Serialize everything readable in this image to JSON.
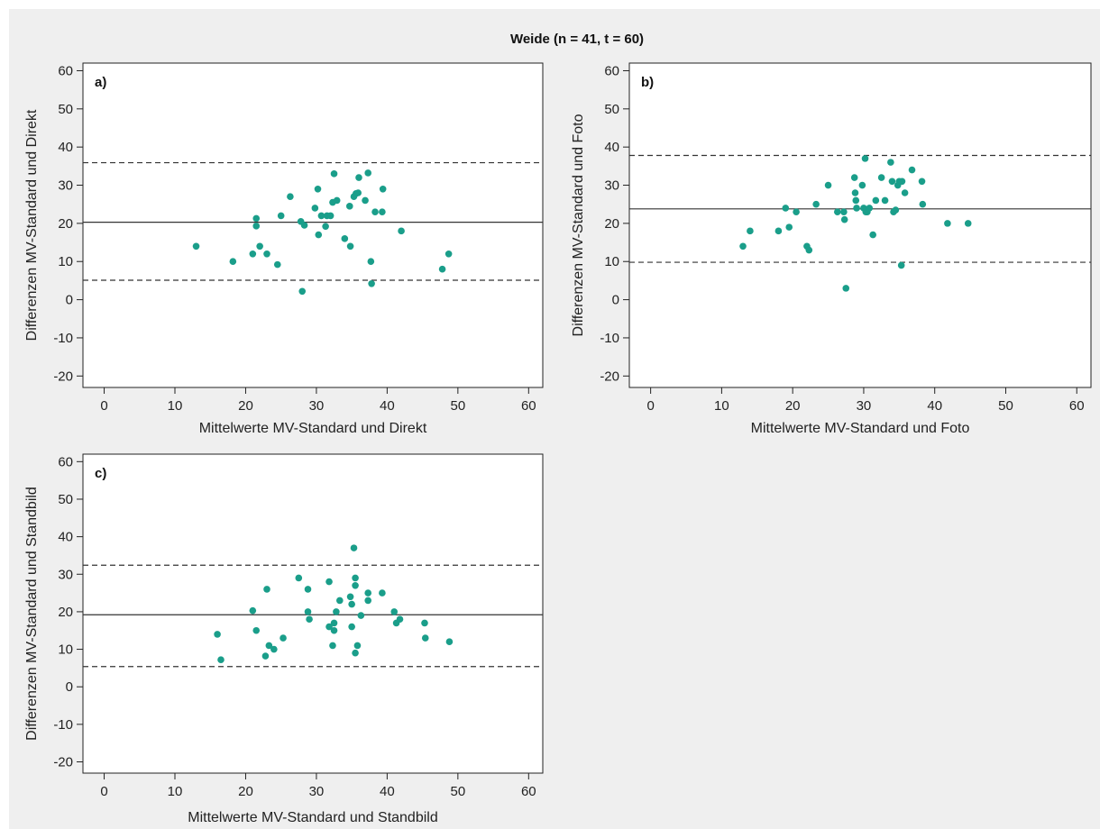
{
  "page": {
    "background": "#ffffff",
    "panel_background": "#efefef",
    "title": "Weide (n = 41, t = 60)"
  },
  "style": {
    "point_color": "#1a9e8a",
    "line_color": "#333333",
    "axis_color": "#222222"
  },
  "chart_data": [
    {
      "type": "scatter",
      "panel_label": "a)",
      "xlabel": "Mittelwerte MV-Standard und Direkt",
      "ylabel": "Differenzen MV-Standard und Direkt",
      "xlim": [
        -3,
        62
      ],
      "ylim": [
        -23,
        62
      ],
      "xticks": [
        0,
        10,
        20,
        30,
        40,
        50,
        60
      ],
      "yticks": [
        -20,
        -10,
        0,
        10,
        20,
        30,
        40,
        50,
        60
      ],
      "grid": false,
      "mean_line": 20.3,
      "limits_of_agreement": [
        5.1,
        35.9
      ],
      "x": [
        13.0,
        18.2,
        21.0,
        21.5,
        21.5,
        22.0,
        23.0,
        24.5,
        25.0,
        26.3,
        27.8,
        28.0,
        28.3,
        29.8,
        30.2,
        30.3,
        30.7,
        31.3,
        31.5,
        32.0,
        32.3,
        32.5,
        32.9,
        34.0,
        34.7,
        34.8,
        35.3,
        35.6,
        35.9,
        36.0,
        36.9,
        37.3,
        37.7,
        37.8,
        38.3,
        39.3,
        39.4,
        42.0,
        47.8,
        48.7
      ],
      "y": [
        14.0,
        10.0,
        12.0,
        21.3,
        19.3,
        14.0,
        12.0,
        9.2,
        22.0,
        27.0,
        20.5,
        2.2,
        19.5,
        24.0,
        29.0,
        17.0,
        22.0,
        19.2,
        22.0,
        22.0,
        25.5,
        33.0,
        26.0,
        16.0,
        24.5,
        14.0,
        27.0,
        27.8,
        28.0,
        32.0,
        26.0,
        33.2,
        10.0,
        4.2,
        23.0,
        23.0,
        29.0,
        18.0,
        8.0,
        12.0
      ]
    },
    {
      "type": "scatter",
      "panel_label": "b)",
      "xlabel": "Mittelwerte MV-Standard und Foto",
      "ylabel": "Differenzen MV-Standard und Foto",
      "xlim": [
        -3,
        62
      ],
      "ylim": [
        -23,
        62
      ],
      "xticks": [
        0,
        10,
        20,
        30,
        40,
        50,
        60
      ],
      "yticks": [
        -20,
        -10,
        0,
        10,
        20,
        30,
        40,
        50,
        60
      ],
      "grid": false,
      "mean_line": 23.8,
      "limits_of_agreement": [
        9.8,
        37.8
      ],
      "x": [
        13.0,
        14.0,
        18.0,
        19.0,
        19.5,
        20.5,
        22.0,
        22.3,
        23.3,
        25.0,
        26.3,
        27.2,
        27.3,
        27.5,
        28.7,
        28.8,
        28.9,
        29.0,
        29.8,
        30.0,
        30.2,
        30.3,
        30.5,
        30.8,
        31.3,
        31.7,
        32.5,
        33.0,
        33.8,
        34.0,
        34.2,
        34.5,
        34.8,
        35.0,
        35.3,
        35.4,
        35.8,
        36.8,
        38.2,
        38.3,
        41.8,
        44.7
      ],
      "y": [
        14.0,
        18.0,
        18.0,
        24.0,
        19.0,
        23.0,
        14.0,
        13.0,
        25.0,
        30.0,
        23.0,
        23.0,
        21.0,
        3.0,
        32.0,
        28.0,
        26.0,
        24.0,
        30.0,
        24.0,
        37.0,
        23.0,
        23.0,
        24.0,
        17.0,
        26.0,
        32.0,
        26.0,
        36.0,
        31.0,
        23.0,
        23.5,
        30.0,
        31.0,
        9.0,
        31.0,
        28.0,
        34.0,
        31.0,
        25.0,
        20.0,
        20.0
      ]
    },
    {
      "type": "scatter",
      "panel_label": "c)",
      "xlabel": "Mittelwerte MV-Standard und Standbild",
      "ylabel": "Differenzen MV-Standard und Standbild",
      "xlim": [
        -3,
        62
      ],
      "ylim": [
        -23,
        62
      ],
      "xticks": [
        0,
        10,
        20,
        30,
        40,
        50,
        60
      ],
      "yticks": [
        -20,
        -10,
        0,
        10,
        20,
        30,
        40,
        50,
        60
      ],
      "grid": false,
      "mean_line": 19.2,
      "limits_of_agreement": [
        5.4,
        32.4
      ],
      "x": [
        16.0,
        16.5,
        21.0,
        21.5,
        22.8,
        23.0,
        23.3,
        24.0,
        25.3,
        27.5,
        28.8,
        28.8,
        29.0,
        31.8,
        31.8,
        32.3,
        32.5,
        32.5,
        32.8,
        33.3,
        34.8,
        35.0,
        35.0,
        35.3,
        35.5,
        35.5,
        35.5,
        35.8,
        36.3,
        37.3,
        37.3,
        39.3,
        41.0,
        41.3,
        41.8,
        45.3,
        45.4,
        48.8
      ],
      "y": [
        14.0,
        7.2,
        20.3,
        15.0,
        8.2,
        26.0,
        11.0,
        10.0,
        13.0,
        29.0,
        26.0,
        20.0,
        18.0,
        28.0,
        16.0,
        11.0,
        17.0,
        15.0,
        20.0,
        23.0,
        24.0,
        16.0,
        22.0,
        37.0,
        29.0,
        27.0,
        9.0,
        11.0,
        19.0,
        25.0,
        23.0,
        25.0,
        20.0,
        17.0,
        18.0,
        17.0,
        13.0,
        12.0
      ]
    }
  ]
}
